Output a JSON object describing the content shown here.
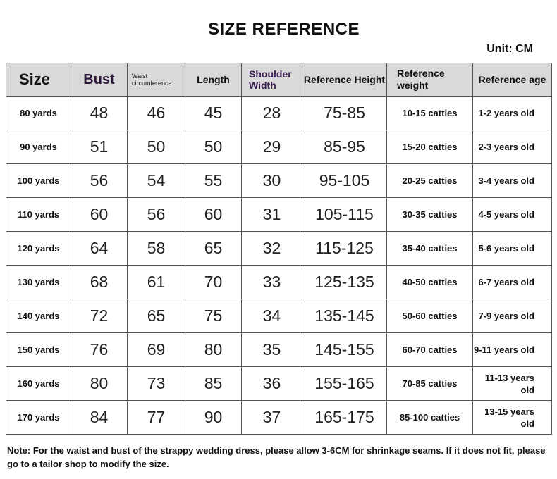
{
  "title": "SIZE REFERENCE",
  "unit": "Unit: CM",
  "headers": {
    "size": "Size",
    "bust": "Bust",
    "waist": "Waist circumference",
    "length": "Length",
    "shoulder": "Shoulder Width",
    "height": "Reference Height",
    "weight": "Reference weight",
    "age": "Reference age"
  },
  "rows": [
    {
      "size": "80 yards",
      "bust": "48",
      "waist": "46",
      "length": "45",
      "shoulder": "28",
      "height": "75-85",
      "weight": "10-15 catties",
      "age": "1-2 years old"
    },
    {
      "size": "90 yards",
      "bust": "51",
      "waist": "50",
      "length": "50",
      "shoulder": "29",
      "height": "85-95",
      "weight": "15-20 catties",
      "age": "2-3 years old"
    },
    {
      "size": "100 yards",
      "bust": "56",
      "waist": "54",
      "length": "55",
      "shoulder": "30",
      "height": "95-105",
      "weight": "20-25 catties",
      "age": "3-4 years old"
    },
    {
      "size": "110 yards",
      "bust": "60",
      "waist": "56",
      "length": "60",
      "shoulder": "31",
      "height": "105-115",
      "weight": "30-35 catties",
      "age": "4-5 years old"
    },
    {
      "size": "120 yards",
      "bust": "64",
      "waist": "58",
      "length": "65",
      "shoulder": "32",
      "height": "115-125",
      "weight": "35-40 catties",
      "age": "5-6 years old"
    },
    {
      "size": "130 yards",
      "bust": "68",
      "waist": "61",
      "length": "70",
      "shoulder": "33",
      "height": "125-135",
      "weight": "40-50 catties",
      "age": "6-7 years old"
    },
    {
      "size": "140 yards",
      "bust": "72",
      "waist": "65",
      "length": "75",
      "shoulder": "34",
      "height": "135-145",
      "weight": "50-60 catties",
      "age": "7-9 years old"
    },
    {
      "size": "150 yards",
      "bust": "76",
      "waist": "69",
      "length": "80",
      "shoulder": "35",
      "height": "145-155",
      "weight": "60-70 catties",
      "age": "9-11 years old"
    },
    {
      "size": "160 yards",
      "bust": "80",
      "waist": "73",
      "length": "85",
      "shoulder": "36",
      "height": "155-165",
      "weight": "70-85 catties",
      "age": "11-13 years old"
    },
    {
      "size": "170 yards",
      "bust": "84",
      "waist": "77",
      "length": "90",
      "shoulder": "37",
      "height": "165-175",
      "weight": "85-100 catties",
      "age": "13-15 years old"
    }
  ],
  "note": "Note: For the waist and bust of the strappy wedding dress, please allow 3-6CM for shrinkage seams. If it does not fit, please go to a tailor shop to modify the size."
}
